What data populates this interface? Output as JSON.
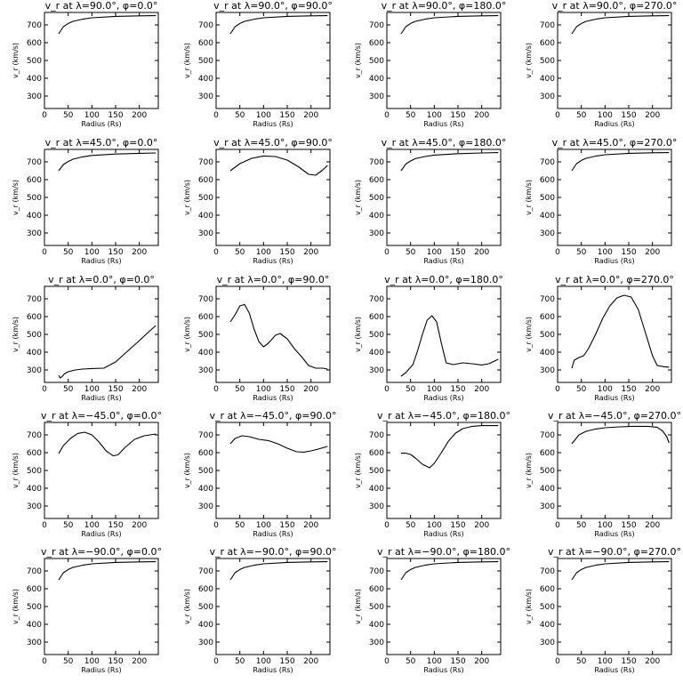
{
  "chart_data": [
    {
      "type": "line",
      "title": "v_r at λ=90.0°, φ=0.0°",
      "xlabel": "Radius (Rs)",
      "ylabel": "v_r (km/s)",
      "xlim": [
        0,
        240
      ],
      "ylim": [
        230,
        770
      ],
      "xticks": [
        0,
        50,
        100,
        150,
        200
      ],
      "yticks": [
        300,
        400,
        500,
        600,
        700
      ],
      "x": [
        30,
        40,
        50,
        60,
        80,
        100,
        150,
        200,
        235
      ],
      "y": [
        650,
        690,
        708,
        720,
        732,
        740,
        748,
        751,
        752
      ]
    },
    {
      "type": "line",
      "title": "v_r at λ=90.0°, φ=90.0°",
      "xlabel": "Radius (Rs)",
      "ylabel": "v_r (km/s)",
      "xlim": [
        0,
        240
      ],
      "ylim": [
        230,
        770
      ],
      "xticks": [
        0,
        50,
        100,
        150,
        200
      ],
      "yticks": [
        300,
        400,
        500,
        600,
        700
      ],
      "x": [
        30,
        40,
        50,
        60,
        80,
        100,
        150,
        200,
        235
      ],
      "y": [
        650,
        690,
        708,
        720,
        732,
        740,
        748,
        751,
        752
      ]
    },
    {
      "type": "line",
      "title": "v_r at λ=90.0°, φ=180.0°",
      "xlabel": "Radius (Rs)",
      "ylabel": "v_r (km/s)",
      "xlim": [
        0,
        240
      ],
      "ylim": [
        230,
        770
      ],
      "xticks": [
        0,
        50,
        100,
        150,
        200
      ],
      "yticks": [
        300,
        400,
        500,
        600,
        700
      ],
      "x": [
        30,
        40,
        50,
        60,
        80,
        100,
        150,
        200,
        235
      ],
      "y": [
        650,
        690,
        708,
        720,
        732,
        740,
        748,
        751,
        752
      ]
    },
    {
      "type": "line",
      "title": "v_r at λ=90.0°, φ=270.0°",
      "xlabel": "Radius (Rs)",
      "ylabel": "v_r (km/s)",
      "xlim": [
        0,
        240
      ],
      "ylim": [
        230,
        770
      ],
      "xticks": [
        0,
        50,
        100,
        150,
        200
      ],
      "yticks": [
        300,
        400,
        500,
        600,
        700
      ],
      "x": [
        30,
        40,
        50,
        60,
        80,
        100,
        150,
        200,
        235
      ],
      "y": [
        650,
        690,
        708,
        720,
        732,
        740,
        748,
        751,
        752
      ]
    },
    {
      "type": "line",
      "title": "v_r at λ=45.0°, φ=0.0°",
      "xlabel": "Radius (Rs)",
      "ylabel": "v_r (km/s)",
      "xlim": [
        0,
        240
      ],
      "ylim": [
        230,
        770
      ],
      "xticks": [
        0,
        50,
        100,
        150,
        200
      ],
      "yticks": [
        300,
        400,
        500,
        600,
        700
      ],
      "x": [
        30,
        40,
        50,
        60,
        80,
        100,
        150,
        200,
        235
      ],
      "y": [
        650,
        685,
        702,
        715,
        728,
        736,
        744,
        748,
        750
      ]
    },
    {
      "type": "line",
      "title": "v_r at λ=45.0°, φ=90.0°",
      "xlabel": "Radius (Rs)",
      "ylabel": "v_r (km/s)",
      "xlim": [
        0,
        240
      ],
      "ylim": [
        230,
        770
      ],
      "xticks": [
        0,
        50,
        100,
        150,
        200
      ],
      "yticks": [
        300,
        400,
        500,
        600,
        700
      ],
      "x": [
        30,
        50,
        75,
        100,
        125,
        150,
        175,
        195,
        210,
        225,
        235
      ],
      "y": [
        650,
        690,
        720,
        733,
        730,
        710,
        670,
        630,
        625,
        655,
        680
      ]
    },
    {
      "type": "line",
      "title": "v_r at λ=45.0°, φ=180.0°",
      "xlabel": "Radius (Rs)",
      "ylabel": "v_r (km/s)",
      "xlim": [
        0,
        240
      ],
      "ylim": [
        230,
        770
      ],
      "xticks": [
        0,
        50,
        100,
        150,
        200
      ],
      "yticks": [
        300,
        400,
        500,
        600,
        700
      ],
      "x": [
        30,
        40,
        50,
        60,
        80,
        100,
        150,
        200,
        235
      ],
      "y": [
        650,
        688,
        705,
        718,
        730,
        738,
        746,
        750,
        752
      ]
    },
    {
      "type": "line",
      "title": "v_r at λ=45.0°, φ=270.0°",
      "xlabel": "Radius (Rs)",
      "ylabel": "v_r (km/s)",
      "xlim": [
        0,
        240
      ],
      "ylim": [
        230,
        770
      ],
      "xticks": [
        0,
        50,
        100,
        150,
        200
      ],
      "yticks": [
        300,
        400,
        500,
        600,
        700
      ],
      "x": [
        30,
        40,
        50,
        60,
        80,
        100,
        150,
        200,
        235
      ],
      "y": [
        650,
        690,
        708,
        720,
        732,
        740,
        748,
        751,
        752
      ]
    },
    {
      "type": "line",
      "title": "v_r at λ=0.0°, φ=0.0°",
      "xlabel": "Radius (Rs)",
      "ylabel": "v_r (km/s)",
      "xlim": [
        0,
        240
      ],
      "ylim": [
        230,
        770
      ],
      "xticks": [
        0,
        50,
        100,
        150,
        200
      ],
      "yticks": [
        300,
        400,
        500,
        600,
        700
      ],
      "x": [
        30,
        33,
        37,
        42,
        50,
        65,
        80,
        100,
        125,
        150,
        175,
        200,
        220,
        235
      ],
      "y": [
        270,
        255,
        262,
        278,
        290,
        300,
        305,
        308,
        310,
        345,
        405,
        465,
        515,
        550
      ]
    },
    {
      "type": "line",
      "title": "v_r at λ=0.0°, φ=90.0°",
      "xlabel": "Radius (Rs)",
      "ylabel": "v_r (km/s)",
      "xlim": [
        0,
        240
      ],
      "ylim": [
        230,
        770
      ],
      "xticks": [
        0,
        50,
        100,
        150,
        200
      ],
      "yticks": [
        300,
        400,
        500,
        600,
        700
      ],
      "x": [
        30,
        40,
        50,
        60,
        70,
        80,
        90,
        100,
        110,
        125,
        135,
        150,
        165,
        180,
        195,
        210,
        225,
        235
      ],
      "y": [
        570,
        610,
        660,
        668,
        620,
        530,
        460,
        430,
        450,
        495,
        505,
        475,
        420,
        375,
        325,
        310,
        310,
        305
      ]
    },
    {
      "type": "line",
      "title": "v_r at λ=0.0°, φ=180.0°",
      "xlabel": "Radius (Rs)",
      "ylabel": "v_r (km/s)",
      "xlim": [
        0,
        240
      ],
      "ylim": [
        230,
        770
      ],
      "xticks": [
        0,
        50,
        100,
        150,
        200
      ],
      "yticks": [
        300,
        400,
        500,
        600,
        700
      ],
      "x": [
        30,
        40,
        55,
        65,
        75,
        85,
        95,
        105,
        115,
        125,
        140,
        160,
        180,
        200,
        215,
        235
      ],
      "y": [
        265,
        285,
        330,
        410,
        500,
        580,
        605,
        570,
        450,
        340,
        330,
        340,
        335,
        328,
        335,
        360
      ]
    },
    {
      "type": "line",
      "title": "v_r at λ=0.0°, φ=270.0°",
      "xlabel": "Radius (Rs)",
      "ylabel": "v_r (km/s)",
      "xlim": [
        0,
        240
      ],
      "ylim": [
        230,
        770
      ],
      "xticks": [
        0,
        50,
        100,
        150,
        200
      ],
      "yticks": [
        300,
        400,
        500,
        600,
        700
      ],
      "x": [
        30,
        35,
        45,
        55,
        65,
        80,
        95,
        110,
        125,
        140,
        155,
        170,
        185,
        200,
        210,
        225,
        235
      ],
      "y": [
        310,
        355,
        370,
        380,
        420,
        500,
        590,
        660,
        705,
        720,
        710,
        640,
        510,
        380,
        325,
        318,
        316
      ]
    },
    {
      "type": "line",
      "title": "v_r at λ=−45.0°, φ=0.0°",
      "xlabel": "Radius (Rs)",
      "ylabel": "v_r (km/s)",
      "xlim": [
        0,
        240
      ],
      "ylim": [
        230,
        770
      ],
      "xticks": [
        0,
        50,
        100,
        150,
        200
      ],
      "yticks": [
        300,
        400,
        500,
        600,
        700
      ],
      "x": [
        30,
        40,
        55,
        70,
        85,
        100,
        115,
        130,
        145,
        155,
        170,
        190,
        210,
        235
      ],
      "y": [
        595,
        640,
        680,
        708,
        715,
        700,
        660,
        610,
        582,
        588,
        630,
        675,
        695,
        705
      ]
    },
    {
      "type": "line",
      "title": "v_r at λ=−45.0°, φ=90.0°",
      "xlabel": "Radius (Rs)",
      "ylabel": "v_r (km/s)",
      "xlim": [
        0,
        240
      ],
      "ylim": [
        230,
        770
      ],
      "xticks": [
        0,
        50,
        100,
        150,
        200
      ],
      "yticks": [
        300,
        400,
        500,
        600,
        700
      ],
      "x": [
        30,
        40,
        55,
        70,
        90,
        110,
        130,
        150,
        170,
        185,
        200,
        215,
        235
      ],
      "y": [
        650,
        680,
        695,
        690,
        675,
        668,
        650,
        625,
        605,
        603,
        610,
        620,
        635
      ]
    },
    {
      "type": "line",
      "title": "v_r at λ=−45.0°, φ=180.0°",
      "xlabel": "Radius (Rs)",
      "ylabel": "v_r (km/s)",
      "xlim": [
        0,
        240
      ],
      "ylim": [
        230,
        770
      ],
      "xticks": [
        0,
        50,
        100,
        150,
        200
      ],
      "yticks": [
        300,
        400,
        500,
        600,
        700
      ],
      "x": [
        30,
        40,
        50,
        60,
        75,
        90,
        100,
        115,
        130,
        145,
        160,
        180,
        200,
        235
      ],
      "y": [
        597,
        597,
        590,
        570,
        535,
        515,
        540,
        600,
        665,
        710,
        735,
        748,
        752,
        752
      ]
    },
    {
      "type": "line",
      "title": "v_r at λ=−45.0°, φ=270.0°",
      "xlabel": "Radius (Rs)",
      "ylabel": "v_r (km/s)",
      "xlim": [
        0,
        240
      ],
      "ylim": [
        230,
        770
      ],
      "xticks": [
        0,
        50,
        100,
        150,
        200
      ],
      "yticks": [
        300,
        400,
        500,
        600,
        700
      ],
      "x": [
        30,
        45,
        60,
        80,
        100,
        130,
        160,
        190,
        210,
        222,
        230,
        235
      ],
      "y": [
        650,
        700,
        720,
        733,
        740,
        745,
        748,
        748,
        743,
        720,
        690,
        655
      ]
    },
    {
      "type": "line",
      "title": "v_r at λ=−90.0°, φ=0.0°",
      "xlabel": "Radius (Rs)",
      "ylabel": "v_r (km/s)",
      "xlim": [
        0,
        240
      ],
      "ylim": [
        230,
        770
      ],
      "xticks": [
        0,
        50,
        100,
        150,
        200
      ],
      "yticks": [
        300,
        400,
        500,
        600,
        700
      ],
      "x": [
        30,
        40,
        50,
        60,
        80,
        100,
        150,
        200,
        235
      ],
      "y": [
        650,
        690,
        708,
        720,
        732,
        740,
        748,
        751,
        752
      ]
    },
    {
      "type": "line",
      "title": "v_r at λ=−90.0°, φ=90.0°",
      "xlabel": "Radius (Rs)",
      "ylabel": "v_r (km/s)",
      "xlim": [
        0,
        240
      ],
      "ylim": [
        230,
        770
      ],
      "xticks": [
        0,
        50,
        100,
        150,
        200
      ],
      "yticks": [
        300,
        400,
        500,
        600,
        700
      ],
      "x": [
        30,
        40,
        50,
        60,
        80,
        100,
        150,
        200,
        235
      ],
      "y": [
        650,
        690,
        708,
        720,
        732,
        740,
        748,
        751,
        752
      ]
    },
    {
      "type": "line",
      "title": "v_r at λ=−90.0°, φ=180.0°",
      "xlabel": "Radius (Rs)",
      "ylabel": "v_r (km/s)",
      "xlim": [
        0,
        240
      ],
      "ylim": [
        230,
        770
      ],
      "xticks": [
        0,
        50,
        100,
        150,
        200
      ],
      "yticks": [
        300,
        400,
        500,
        600,
        700
      ],
      "x": [
        30,
        40,
        50,
        60,
        80,
        100,
        150,
        200,
        235
      ],
      "y": [
        650,
        690,
        708,
        720,
        732,
        740,
        748,
        751,
        752
      ]
    },
    {
      "type": "line",
      "title": "v_r at λ=−90.0°, φ=270.0°",
      "xlabel": "Radius (Rs)",
      "ylabel": "v_r (km/s)",
      "xlim": [
        0,
        240
      ],
      "ylim": [
        230,
        770
      ],
      "xticks": [
        0,
        50,
        100,
        150,
        200
      ],
      "yticks": [
        300,
        400,
        500,
        600,
        700
      ],
      "x": [
        30,
        40,
        50,
        60,
        80,
        100,
        150,
        200,
        235
      ],
      "y": [
        650,
        690,
        708,
        720,
        732,
        740,
        748,
        751,
        752
      ]
    }
  ]
}
